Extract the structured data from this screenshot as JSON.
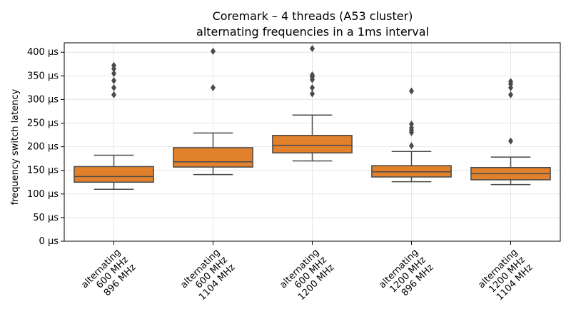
{
  "chart_data": {
    "type": "box",
    "title": "Coremark – 4 threads (A53 cluster)",
    "subtitle": "alternating frequencies in a 1ms interval",
    "xlabel": "",
    "ylabel": "frequency switch latency",
    "y_unit": "µs",
    "ylim": [
      0,
      420
    ],
    "yticks": [
      0,
      50,
      100,
      150,
      200,
      250,
      300,
      350,
      400
    ],
    "ytick_labels": [
      "0 µs",
      "50 µs",
      "100 µs",
      "150 µs",
      "200 µs",
      "250 µs",
      "300 µs",
      "350 µs",
      "400 µs"
    ],
    "grid": true,
    "box_color": "#e1812c",
    "line_color": "#4a4a4a",
    "categories": [
      {
        "label_lines": [
          "alternating",
          "600 MHz",
          "896 MHz"
        ],
        "whisker_low": 110,
        "q1": 125,
        "median": 137,
        "q3": 158,
        "whisker_high": 182,
        "outliers": [
          310,
          325,
          340,
          355,
          365,
          372
        ]
      },
      {
        "label_lines": [
          "alternating",
          "600 MHz",
          "1104 MHz"
        ],
        "whisker_low": 141,
        "q1": 157,
        "median": 168,
        "q3": 198,
        "whisker_high": 229,
        "outliers": [
          325,
          402
        ]
      },
      {
        "label_lines": [
          "alternating",
          "600 MHz",
          "1200 MHz"
        ],
        "whisker_low": 170,
        "q1": 187,
        "median": 203,
        "q3": 224,
        "whisker_high": 267,
        "outliers": [
          312,
          325,
          342,
          348,
          352,
          408
        ]
      },
      {
        "label_lines": [
          "alternating",
          "1200 MHz",
          "896 MHz"
        ],
        "whisker_low": 126,
        "q1": 136,
        "median": 147,
        "q3": 160,
        "whisker_high": 190,
        "outliers": [
          202,
          230,
          235,
          240,
          248,
          318
        ]
      },
      {
        "label_lines": [
          "alternating",
          "1200 MHz",
          "1104 MHz"
        ],
        "whisker_low": 120,
        "q1": 130,
        "median": 143,
        "q3": 156,
        "whisker_high": 178,
        "outliers": [
          212,
          310,
          325,
          333,
          338
        ]
      }
    ]
  }
}
